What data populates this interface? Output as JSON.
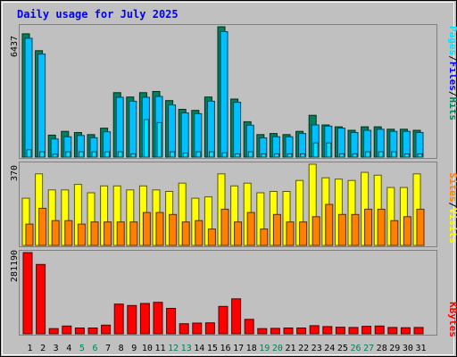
{
  "title": "Daily usage for July 2025",
  "colors": {
    "background": "#c0c0c0",
    "title": "#0000ff",
    "hits": "#00805c",
    "files": "#00c0ff",
    "pages": "#00e0ff",
    "visits": "#ffff00",
    "sites": "#ff8000",
    "kbytes": "#ff0000",
    "weekend_label": "#00805c",
    "weekday_label": "#000000"
  },
  "chart_data": [
    {
      "type": "bar",
      "panel": "hits_files_pages",
      "max_label": "6437",
      "ylim": [
        0,
        6437
      ],
      "legend": [
        {
          "text": "Pages",
          "color": "#00e0ff"
        },
        {
          "text": "/",
          "color": "#000000"
        },
        {
          "text": "Files",
          "color": "#0000ff"
        },
        {
          "text": "/",
          "color": "#000000"
        },
        {
          "text": "Hits",
          "color": "#00805c"
        }
      ],
      "categories": [
        "1",
        "2",
        "3",
        "4",
        "5",
        "6",
        "7",
        "8",
        "9",
        "10",
        "11",
        "12",
        "13",
        "14",
        "15",
        "16",
        "17",
        "18",
        "19",
        "20",
        "21",
        "22",
        "23",
        "24",
        "25",
        "26",
        "27",
        "28",
        "29",
        "30",
        "31"
      ],
      "series": [
        {
          "name": "Hits",
          "values": [
            6088,
            5257,
            1084,
            1270,
            1214,
            1111,
            1427,
            3184,
            2966,
            3184,
            3240,
            2792,
            2358,
            2307,
            2966,
            6437,
            2865,
            1747,
            1111,
            1163,
            1111,
            1270,
            2065,
            1588,
            1494,
            1321,
            1494,
            1494,
            1374,
            1374,
            1321
          ]
        },
        {
          "name": "Files",
          "values": [
            5868,
            5090,
            894,
            1006,
            1068,
            957,
            1247,
            2952,
            2758,
            2952,
            2995,
            2577,
            2183,
            2143,
            2758,
            6196,
            2706,
            1576,
            949,
            1006,
            1006,
            1163,
            1588,
            1532,
            1427,
            1214,
            1322,
            1374,
            1270,
            1270,
            1214
          ]
        },
        {
          "name": "Pages",
          "values": [
            360,
            260,
            140,
            260,
            260,
            260,
            260,
            260,
            160,
            1850,
            1700,
            260,
            200,
            260,
            260,
            210,
            160,
            260,
            160,
            160,
            160,
            160,
            700,
            700,
            160,
            160,
            260,
            260,
            260,
            160,
            160
          ]
        }
      ]
    },
    {
      "type": "bar",
      "panel": "visits_sites",
      "max_label": "370",
      "ylim": [
        0,
        370
      ],
      "legend": [
        {
          "text": "Sites",
          "color": "#ff8000"
        },
        {
          "text": "/",
          "color": "#000000"
        },
        {
          "text": "Visits",
          "color": "#ffff00"
        }
      ],
      "categories": [
        "1",
        "2",
        "3",
        "4",
        "5",
        "6",
        "7",
        "8",
        "9",
        "10",
        "11",
        "12",
        "13",
        "14",
        "15",
        "16",
        "17",
        "18",
        "19",
        "20",
        "21",
        "22",
        "23",
        "24",
        "25",
        "26",
        "27",
        "28",
        "29",
        "30",
        "31"
      ],
      "series": [
        {
          "name": "Visits",
          "values": [
            215,
            326,
            253,
            253,
            278,
            240,
            271,
            271,
            253,
            271,
            253,
            246,
            284,
            215,
            221,
            326,
            271,
            284,
            240,
            246,
            246,
            296,
            370,
            308,
            302,
            296,
            333,
            320,
            264,
            264,
            326
          ]
        },
        {
          "name": "Sites",
          "values": [
            97,
            169,
            113,
            113,
            97,
            107,
            107,
            107,
            107,
            150,
            150,
            141,
            107,
            113,
            75,
            165,
            107,
            150,
            75,
            141,
            107,
            107,
            131,
            187,
            141,
            141,
            165,
            165,
            113,
            131,
            165
          ]
        }
      ]
    },
    {
      "type": "bar",
      "panel": "kbytes",
      "max_label": "281190",
      "ylim": [
        0,
        281190
      ],
      "legend": [
        {
          "text": "KBytes",
          "color": "#ff0000"
        }
      ],
      "categories": [
        "1",
        "2",
        "3",
        "4",
        "5",
        "6",
        "7",
        "8",
        "9",
        "10",
        "11",
        "12",
        "13",
        "14",
        "15",
        "16",
        "17",
        "18",
        "19",
        "20",
        "21",
        "22",
        "23",
        "24",
        "25",
        "26",
        "27",
        "28",
        "29",
        "30",
        "31"
      ],
      "weekend_days": [
        "5",
        "6",
        "12",
        "13",
        "19",
        "20",
        "26",
        "27"
      ],
      "series": [
        {
          "name": "KBytes",
          "values": [
            281190,
            240000,
            18000,
            27000,
            20000,
            20000,
            30000,
            103000,
            98000,
            105000,
            109000,
            88000,
            35000,
            37000,
            38000,
            95000,
            121000,
            50000,
            18000,
            19000,
            20000,
            20000,
            28000,
            25000,
            23000,
            22000,
            26000,
            27000,
            22000,
            21000,
            22000
          ]
        }
      ]
    }
  ]
}
